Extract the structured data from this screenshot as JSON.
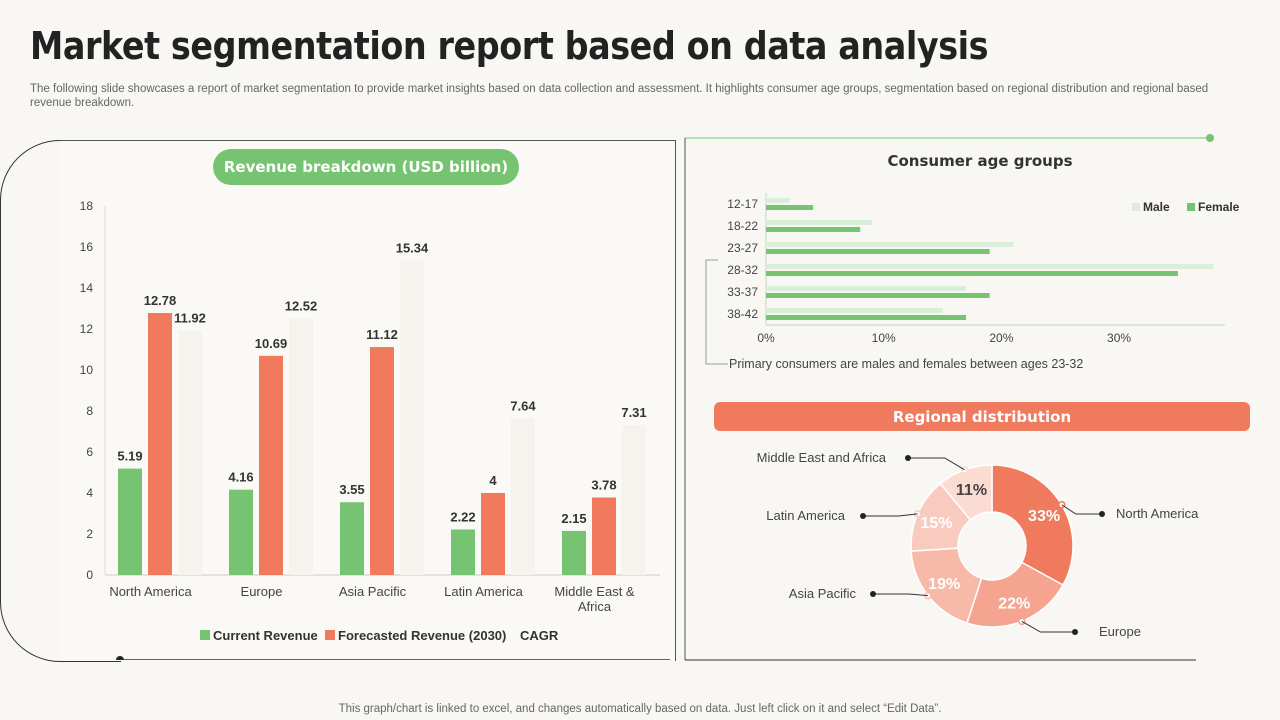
{
  "title": "Market segmentation report based on data analysis",
  "subtitle": "The following slide showcases a report of market segmentation to provide market insights based on data collection and assessment. It highlights consumer age groups, segmentation based on regional distribution and regional based revenue breakdown.",
  "footer": "This graph/chart is linked to excel, and changes automatically based on data. Just left click on it and select “Edit Data”.",
  "colors": {
    "green": "#76c472",
    "orange": "#f07a5e",
    "light_green": "#d9efd8"
  },
  "revenue_header": "Revenue breakdown (USD billion)",
  "age_header": "Consumer age groups",
  "age_note": "Primary consumers are males and females between ages 23-32",
  "regional_header": "Regional distribution",
  "chart_data": [
    {
      "type": "bar",
      "categories": [
        "North America",
        "Europe",
        "Asia Pacific",
        "Latin America",
        "Middle East & Africa"
      ],
      "series": [
        {
          "name": "Current Revenue",
          "values": [
            5.19,
            4.16,
            3.55,
            2.22,
            2.15
          ]
        },
        {
          "name": "Forecasted Revenue (2030)",
          "values": [
            12.78,
            10.69,
            11.12,
            4,
            3.78
          ]
        },
        {
          "name": "CAGR",
          "values": [
            11.92,
            12.52,
            15.34,
            7.64,
            7.31
          ]
        }
      ],
      "yticks": [
        "0",
        "2",
        "4",
        "6",
        "8",
        "10",
        "12",
        "14",
        "16",
        "18"
      ],
      "ylim": [
        0,
        18
      ],
      "legend": "bottom"
    },
    {
      "type": "bar",
      "orientation": "horizontal",
      "categories": [
        "12-17",
        "18-22",
        "23-27",
        "28-32",
        "33-37",
        "38-42"
      ],
      "series": [
        {
          "name": "Male",
          "values": [
            2,
            9,
            21,
            38,
            17,
            15
          ]
        },
        {
          "name": "Female",
          "values": [
            4,
            8,
            19,
            35,
            19,
            17
          ]
        }
      ],
      "xticks": [
        "0%",
        "10%",
        "20%",
        "30%"
      ],
      "xlim": [
        0,
        39
      ],
      "legend": "top-right"
    },
    {
      "type": "pie",
      "donut": true,
      "slices": [
        {
          "label": "North America",
          "value": 33,
          "text": "33%"
        },
        {
          "label": "Europe",
          "value": 22,
          "text": "22%"
        },
        {
          "label": "Asia Pacific",
          "value": 19,
          "text": "19%"
        },
        {
          "label": "Latin America",
          "value": 15,
          "text": "15%"
        },
        {
          "label": "Middle East and Africa",
          "value": 11,
          "text": "11%"
        }
      ]
    }
  ]
}
